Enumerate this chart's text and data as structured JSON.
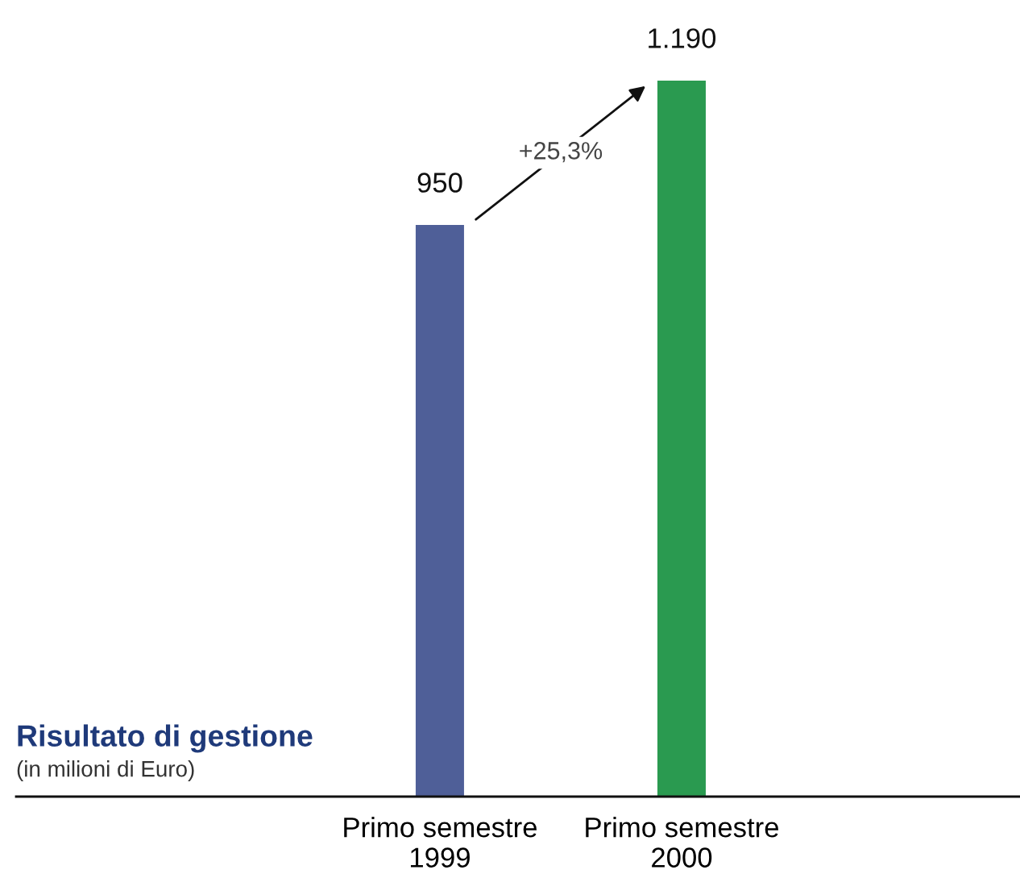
{
  "chart_data": {
    "type": "bar",
    "title": "Risultato di gestione",
    "subtitle": "(in milioni di Euro)",
    "categories": [
      "Primo semestre\n1999",
      "Primo semestre\n2000"
    ],
    "values": [
      950,
      1190
    ],
    "colors": [
      "#4f5f98",
      "#2a9a50"
    ],
    "value_labels": [
      "950",
      "1.190"
    ],
    "annotations": [
      "+25,3%"
    ]
  }
}
